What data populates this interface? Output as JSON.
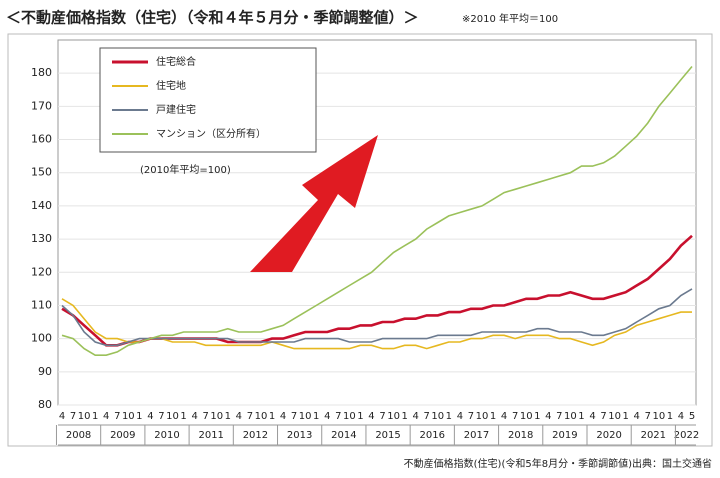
{
  "chart_data": {
    "type": "line",
    "title": "＜不動産価格指数（住宅）（令和４年５月分・季節調整値）＞",
    "subtitle": "※2010 年平均＝100",
    "annotation": "(2010年平均=100)",
    "source": "不動産価格指数(住宅)(令和5年8月分・季節調節値)出典：国土交通省",
    "categories": [
      "4",
      "7",
      "10",
      "1",
      "4",
      "7",
      "10",
      "1",
      "4",
      "7",
      "10",
      "1",
      "4",
      "7",
      "10",
      "1",
      "4",
      "7",
      "10",
      "1",
      "4",
      "7",
      "10",
      "1",
      "4",
      "7",
      "10",
      "1",
      "4",
      "7",
      "10",
      "1",
      "4",
      "7",
      "10",
      "1",
      "4",
      "7",
      "10",
      "1",
      "4",
      "7",
      "10",
      "1",
      "4",
      "7",
      "10",
      "1",
      "4",
      "7",
      "10",
      "1",
      "4",
      "7",
      "10",
      "1",
      "4",
      "5"
    ],
    "years": [
      "2008",
      "2009",
      "2010",
      "2011",
      "2012",
      "2013",
      "2014",
      "2015",
      "2016",
      "2017",
      "2018",
      "2019",
      "2020",
      "2021",
      "2022"
    ],
    "ylim": [
      80,
      190
    ],
    "yticks": [
      80,
      90,
      100,
      110,
      120,
      130,
      140,
      150,
      160,
      170,
      180
    ],
    "grid": true,
    "legend": "upper left",
    "series": [
      {
        "name": "住宅総合",
        "color": "#c8102e",
        "values": [
          109,
          107,
          104,
          101,
          98,
          98,
          99,
          99,
          100,
          100,
          100,
          100,
          100,
          100,
          100,
          99,
          99,
          99,
          99,
          100,
          100,
          101,
          102,
          102,
          102,
          103,
          103,
          104,
          104,
          105,
          105,
          106,
          106,
          107,
          107,
          108,
          108,
          109,
          109,
          110,
          110,
          111,
          112,
          112,
          113,
          113,
          114,
          113,
          112,
          112,
          113,
          114,
          116,
          118,
          121,
          124,
          128,
          131
        ]
      },
      {
        "name": "住宅地",
        "color": "#e6b820",
        "values": [
          112,
          110,
          106,
          102,
          100,
          100,
          99,
          99,
          100,
          100,
          99,
          99,
          99,
          98,
          98,
          98,
          98,
          98,
          98,
          99,
          98,
          97,
          97,
          97,
          97,
          97,
          97,
          98,
          98,
          97,
          97,
          98,
          98,
          97,
          98,
          99,
          99,
          100,
          100,
          101,
          101,
          100,
          101,
          101,
          101,
          100,
          100,
          99,
          98,
          99,
          101,
          102,
          104,
          105,
          106,
          107,
          108,
          108
        ]
      },
      {
        "name": "戸建住宅",
        "color": "#6b7a8f",
        "values": [
          110,
          107,
          102,
          99,
          98,
          98,
          99,
          100,
          100,
          100,
          100,
          100,
          100,
          100,
          100,
          100,
          99,
          99,
          99,
          99,
          99,
          99,
          100,
          100,
          100,
          100,
          99,
          99,
          99,
          100,
          100,
          100,
          100,
          100,
          101,
          101,
          101,
          101,
          102,
          102,
          102,
          102,
          102,
          103,
          103,
          102,
          102,
          102,
          101,
          101,
          102,
          103,
          105,
          107,
          109,
          110,
          113,
          115
        ]
      },
      {
        "name": "マンション（区分所有）",
        "color": "#9bc15a",
        "values": [
          101,
          100,
          97,
          95,
          95,
          96,
          98,
          99,
          100,
          101,
          101,
          102,
          102,
          102,
          102,
          103,
          102,
          102,
          102,
          103,
          104,
          106,
          108,
          110,
          112,
          114,
          116,
          118,
          120,
          123,
          126,
          128,
          130,
          133,
          135,
          137,
          138,
          139,
          140,
          142,
          144,
          145,
          146,
          147,
          148,
          149,
          150,
          152,
          152,
          153,
          155,
          158,
          161,
          165,
          170,
          174,
          178,
          182
        ]
      }
    ]
  }
}
